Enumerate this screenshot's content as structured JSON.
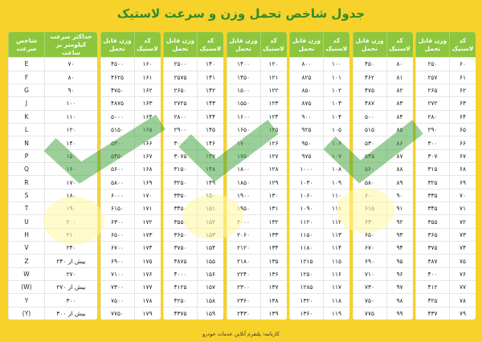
{
  "title": "جدول شاخص تحمل وزن و سرعت لاستیک",
  "speed_table": {
    "headers": [
      "حداکثر سرعت کیلومتر بر ساعت",
      "شاخص سرعت"
    ],
    "rows": [
      [
        "۷۰",
        "E"
      ],
      [
        "۸۰",
        "F"
      ],
      [
        "۹۰",
        "G"
      ],
      [
        "۱۰۰",
        "J"
      ],
      [
        "۱۱۰",
        "K"
      ],
      [
        "۱۲۰",
        "L"
      ],
      [
        "۱۴۰",
        "N"
      ],
      [
        "۱۵۰",
        "P"
      ],
      [
        "۱۶۰",
        "Q"
      ],
      [
        "۱۷۰",
        "R"
      ],
      [
        "۱۸۰",
        "S"
      ],
      [
        "۱۹۰",
        "T"
      ],
      [
        "۲۰۰",
        "U"
      ],
      [
        "۲۱۰",
        "H"
      ],
      [
        "۲۴۰",
        "V"
      ],
      [
        "بیش از ۲۴۰",
        "Z"
      ],
      [
        "۲۷۰",
        "W"
      ],
      [
        "بیش از ۲۷۰",
        "(W)"
      ],
      [
        "۳۰۰",
        "Y"
      ],
      [
        "بیش از ۳۰۰",
        "(Y)"
      ]
    ]
  },
  "load_tables": [
    {
      "headers": [
        "کد لاستیک",
        "وزن قابل تحمل"
      ],
      "rows": [
        [
          "۶۰",
          "۲۵۰"
        ],
        [
          "۶۱",
          "۲۵۷"
        ],
        [
          "۶۲",
          "۲۶۵"
        ],
        [
          "۶۳",
          "۲۷۲"
        ],
        [
          "۶۴",
          "۲۸۰"
        ],
        [
          "۶۵",
          "۲۹۰"
        ],
        [
          "۶۶",
          "۳۰۰"
        ],
        [
          "۶۷",
          "۳۰۷"
        ],
        [
          "۶۸",
          "۳۱۵"
        ],
        [
          "۶۹",
          "۳۲۵"
        ],
        [
          "۷۰",
          "۳۳۵"
        ],
        [
          "۷۱",
          "۳۴۵"
        ],
        [
          "۷۲",
          "۳۵۵"
        ],
        [
          "۷۳",
          "۳۶۵"
        ],
        [
          "۷۴",
          "۳۷۵"
        ],
        [
          "۷۵",
          "۳۸۷"
        ],
        [
          "۷۶",
          "۴۰۰"
        ],
        [
          "۷۷",
          "۴۱۲"
        ],
        [
          "۷۸",
          "۴۲۵"
        ],
        [
          "۷۹",
          "۴۳۷"
        ]
      ]
    },
    {
      "headers": [
        "کد لاستیک",
        "وزن قابل تحمل"
      ],
      "rows": [
        [
          "۸۰",
          "۴۵۰"
        ],
        [
          "۸۱",
          "۴۶۲"
        ],
        [
          "۸۲",
          "۴۷۵"
        ],
        [
          "۸۳",
          "۴۸۷"
        ],
        [
          "۸۴",
          "۵۰۰"
        ],
        [
          "۸۵",
          "۵۱۵"
        ],
        [
          "۸۶",
          "۵۳۰"
        ],
        [
          "۸۷",
          "۵۴۵"
        ],
        [
          "۸۸",
          "۵۶۰"
        ],
        [
          "۸۹",
          "۵۸۰"
        ],
        [
          "۹۰",
          "۶۰۰"
        ],
        [
          "۹۱",
          "۶۱۵"
        ],
        [
          "۹۲",
          "۶۳۰"
        ],
        [
          "۹۳",
          "۶۵۰"
        ],
        [
          "۹۴",
          "۶۷۰"
        ],
        [
          "۹۵",
          "۶۹۰"
        ],
        [
          "۹۶",
          "۷۱۰"
        ],
        [
          "۹۷",
          "۷۳۰"
        ],
        [
          "۹۸",
          "۷۵۰"
        ],
        [
          "۹۹",
          "۷۷۵"
        ]
      ]
    },
    {
      "headers": [
        "کد لاستیک",
        "وزن قابل تحمل"
      ],
      "rows": [
        [
          "۱۰۰",
          "۸۰۰"
        ],
        [
          "۱۰۱",
          "۸۲۵"
        ],
        [
          "۱۰۲",
          "۸۵۰"
        ],
        [
          "۱۰۳",
          "۸۷۵"
        ],
        [
          "۱۰۴",
          "۹۰۰"
        ],
        [
          "۱۰۵",
          "۹۲۵"
        ],
        [
          "۱۰۶",
          "۹۵۰"
        ],
        [
          "۱۰۷",
          "۹۷۵"
        ],
        [
          "۱۰۸",
          "۱۰۰۰"
        ],
        [
          "۱۰۹",
          "۱۰۳۰"
        ],
        [
          "۱۱۰",
          "۱۰۶۰"
        ],
        [
          "۱۱۱",
          "۱۰۹۰"
        ],
        [
          "۱۱۲",
          "۱۱۲۰"
        ],
        [
          "۱۱۳",
          "۱۱۵۰"
        ],
        [
          "۱۱۴",
          "۱۱۸۰"
        ],
        [
          "۱۱۵",
          "۱۲۱۵"
        ],
        [
          "۱۱۶",
          "۱۲۵۰"
        ],
        [
          "۱۱۷",
          "۱۲۸۵"
        ],
        [
          "۱۱۸",
          "۱۳۲۰"
        ],
        [
          "۱۱۹",
          "۱۳۶۰"
        ]
      ]
    },
    {
      "headers": [
        "کد لاستیک",
        "وزن قابل تحمل"
      ],
      "rows": [
        [
          "۱۲۰",
          "۱۴۰۰"
        ],
        [
          "۱۲۱",
          "۱۴۵۰"
        ],
        [
          "۱۲۲",
          "۱۵۰۰"
        ],
        [
          "۱۲۳",
          "۱۵۵۰"
        ],
        [
          "۱۲۴",
          "۱۶۰۰"
        ],
        [
          "۱۲۵",
          "۱۶۵۰"
        ],
        [
          "۱۲۶",
          "۱۷۰۰"
        ],
        [
          "۱۲۷",
          "۱۷۵۰"
        ],
        [
          "۱۲۸",
          "۱۸۰۰"
        ],
        [
          "۱۲۹",
          "۱۸۵۰"
        ],
        [
          "۱۳۰",
          "۱۹۰۰"
        ],
        [
          "۱۳۱",
          "۱۹۵۰"
        ],
        [
          "۱۳۲",
          "۲۰۰۰"
        ],
        [
          "۱۳۳",
          "۲۰۶۰"
        ],
        [
          "۱۳۴",
          "۲۱۲۰"
        ],
        [
          "۱۳۵",
          "۲۱۸۰"
        ],
        [
          "۱۳۶",
          "۲۲۴۰"
        ],
        [
          "۱۳۷",
          "۲۳۰۰"
        ],
        [
          "۱۳۸",
          "۲۳۶۰"
        ],
        [
          "۱۳۹",
          "۲۴۳۰"
        ]
      ]
    },
    {
      "headers": [
        "کد لاستیک",
        "وزن قابل تحمل"
      ],
      "rows": [
        [
          "۱۴۰",
          "۲۵۰۰"
        ],
        [
          "۱۴۱",
          "۲۵۷۵"
        ],
        [
          "۱۴۲",
          "۲۶۵۰"
        ],
        [
          "۱۴۳",
          "۲۷۲۵"
        ],
        [
          "۱۴۴",
          "۲۸۰۰"
        ],
        [
          "۱۴۵",
          "۲۹۰۰"
        ],
        [
          "۱۴۶",
          "۳۰۰۰"
        ],
        [
          "۱۴۷",
          "۳۰۷۵"
        ],
        [
          "۱۴۸",
          "۳۱۵۰"
        ],
        [
          "۱۴۹",
          "۳۲۵۰"
        ],
        [
          "۱۵۰",
          "۳۳۵۰"
        ],
        [
          "۱۵۱",
          "۳۴۵۰"
        ],
        [
          "۱۵۲",
          "۳۵۵۰"
        ],
        [
          "۱۵۳",
          "۳۶۵۰"
        ],
        [
          "۱۵۴",
          "۳۷۵۰"
        ],
        [
          "۱۵۵",
          "۳۸۷۵"
        ],
        [
          "۱۵۶",
          "۴۰۰۰"
        ],
        [
          "۱۵۷",
          "۴۱۲۵"
        ],
        [
          "۱۵۸",
          "۴۲۵۰"
        ],
        [
          "۱۵۹",
          "۴۳۷۵"
        ]
      ]
    },
    {
      "headers": [
        "کد لاستیک",
        "وزن قابل تحمل"
      ],
      "rows": [
        [
          "۱۶۰",
          "۴۵۰۰"
        ],
        [
          "۱۶۱",
          "۴۶۲۵"
        ],
        [
          "۱۶۲",
          "۴۷۵۰"
        ],
        [
          "۱۶۳",
          "۴۸۷۵"
        ],
        [
          "۱۶۴",
          "۵۰۰۰"
        ],
        [
          "۱۶۵",
          "۵۱۵۰"
        ],
        [
          "۱۶۶",
          "۵۳۰۰"
        ],
        [
          "۱۶۷",
          "۵۴۵۰"
        ],
        [
          "۱۶۸",
          "۵۶۰۰"
        ],
        [
          "۱۶۹",
          "۵۸۰۰"
        ],
        [
          "۱۷۰",
          "۶۰۰۰"
        ],
        [
          "۱۷۱",
          "۶۱۵۰"
        ],
        [
          "۱۷۲",
          "۶۳۰۰"
        ],
        [
          "۱۷۳",
          "۶۵۰۰"
        ],
        [
          "۱۷۴",
          "۶۷۰۰"
        ],
        [
          "۱۷۵",
          "۶۹۰۰"
        ],
        [
          "۱۷۶",
          "۷۱۰۰"
        ],
        [
          "۱۷۷",
          "۷۳۰۰"
        ],
        [
          "۱۷۸",
          "۷۵۰۰"
        ],
        [
          "۱۷۹",
          "۷۷۵۰"
        ]
      ]
    }
  ],
  "footer": "کارنامه؛ پلتفرم آنلاین خدمات خودرو"
}
